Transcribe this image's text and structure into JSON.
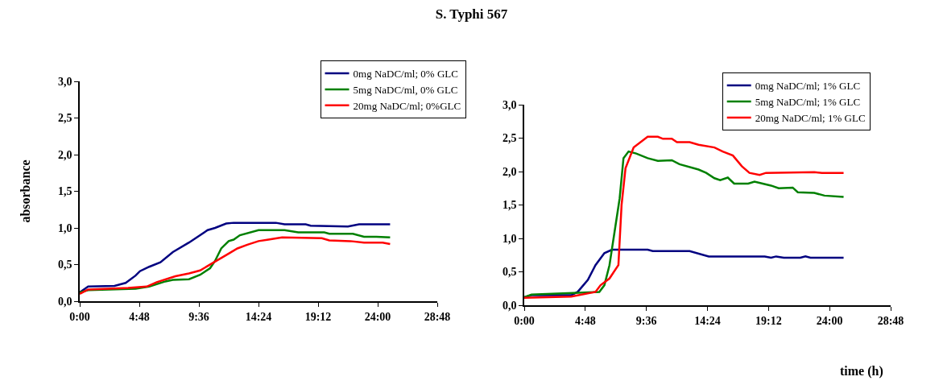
{
  "chart_data": [
    {
      "type": "line",
      "title": "S. Typhi 567",
      "ylabel": "absorbance",
      "legend": "top right",
      "grid": false,
      "marker": "none",
      "line_style": "solid",
      "xlim": [
        0,
        28.8
      ],
      "xticks": [
        {
          "value": 0,
          "label": "0:00"
        },
        {
          "value": 4.8,
          "label": "4:48"
        },
        {
          "value": 9.6,
          "label": "9:36"
        },
        {
          "value": 14.4,
          "label": "14:24"
        },
        {
          "value": 19.2,
          "label": "19:12"
        },
        {
          "value": 24,
          "label": "24:00"
        },
        {
          "value": 28.8,
          "label": "28:48"
        }
      ],
      "ylim": [
        0,
        3
      ],
      "yticks": [
        {
          "value": 0,
          "label": "0,0"
        },
        {
          "value": 0.5,
          "label": "0,5"
        },
        {
          "value": 1,
          "label": "1,0"
        },
        {
          "value": 1.5,
          "label": "1,5"
        },
        {
          "value": 2,
          "label": "2,0"
        },
        {
          "value": 2.5,
          "label": "2,5"
        },
        {
          "value": 3,
          "label": "3,0"
        }
      ],
      "series": [
        {
          "name": "0mg NaDC/ml; 0% GLC",
          "color": "#000080",
          "x": [
            0,
            0.68,
            2.8,
            3.7,
            4.5,
            4.85,
            5.6,
            6.5,
            7.5,
            8.8,
            10.3,
            10.9,
            11.8,
            12.4,
            15.8,
            16.5,
            18.2,
            18.6,
            21.6,
            22.5,
            25
          ],
          "values": [
            0.12,
            0.2,
            0.21,
            0.25,
            0.35,
            0.41,
            0.47,
            0.53,
            0.67,
            0.8,
            0.97,
            1.0,
            1.06,
            1.07,
            1.07,
            1.05,
            1.05,
            1.03,
            1.02,
            1.05,
            1.05
          ]
        },
        {
          "name": "5mg NaDC/ml, 0% GLC",
          "color": "#008000",
          "x": [
            0,
            0.68,
            4.5,
            5.6,
            6.9,
            7.5,
            8.8,
            9.7,
            10.5,
            10.9,
            11.4,
            12,
            12.4,
            12.9,
            14.4,
            16.5,
            17.6,
            19.7,
            20.1,
            22,
            22.9,
            23.9,
            25
          ],
          "values": [
            0.12,
            0.15,
            0.17,
            0.2,
            0.27,
            0.29,
            0.3,
            0.36,
            0.45,
            0.55,
            0.72,
            0.82,
            0.84,
            0.9,
            0.97,
            0.97,
            0.94,
            0.94,
            0.92,
            0.92,
            0.88,
            0.88,
            0.87
          ]
        },
        {
          "name": "20mg NaDC/ml; 0%GLC",
          "color": "#ff0000",
          "x": [
            0,
            0.68,
            3.9,
            5.4,
            6.2,
            7.7,
            8.8,
            9.7,
            10.7,
            12,
            12.7,
            13.5,
            14.4,
            15.2,
            16.3,
            19.5,
            20.1,
            21.8,
            22.9,
            24.4,
            25
          ],
          "values": [
            0.1,
            0.16,
            0.18,
            0.2,
            0.26,
            0.34,
            0.38,
            0.42,
            0.52,
            0.65,
            0.72,
            0.77,
            0.82,
            0.84,
            0.87,
            0.86,
            0.83,
            0.82,
            0.8,
            0.8,
            0.78
          ]
        }
      ]
    },
    {
      "type": "line",
      "xlabel": "time (h)",
      "legend": "top right",
      "grid": false,
      "marker": "none",
      "line_style": "solid",
      "xlim": [
        0,
        28.8
      ],
      "xticks": [
        {
          "value": 0,
          "label": "0:00"
        },
        {
          "value": 4.8,
          "label": "4:48"
        },
        {
          "value": 9.6,
          "label": "9:36"
        },
        {
          "value": 14.4,
          "label": "14:24"
        },
        {
          "value": 19.2,
          "label": "19:12"
        },
        {
          "value": 24,
          "label": "24:00"
        },
        {
          "value": 28.8,
          "label": "28:48"
        }
      ],
      "ylim": [
        0,
        3
      ],
      "yticks": [
        {
          "value": 0,
          "label": "0,0"
        },
        {
          "value": 0.5,
          "label": "0,5"
        },
        {
          "value": 1,
          "label": "1,0"
        },
        {
          "value": 1.5,
          "label": "1,5"
        },
        {
          "value": 2,
          "label": "2,0"
        },
        {
          "value": 2.5,
          "label": "2,5"
        },
        {
          "value": 3,
          "label": "3,0"
        }
      ],
      "series": [
        {
          "name": "0mg NaDC/ml; 1% GLC",
          "color": "#000080",
          "x": [
            0,
            0.57,
            3.7,
            4.2,
            5,
            5.6,
            6.3,
            6.9,
            9.7,
            10.1,
            13,
            14.5,
            18.9,
            19.4,
            19.8,
            20.4,
            21.7,
            22.1,
            22.5,
            25.1
          ],
          "values": [
            0.12,
            0.15,
            0.15,
            0.2,
            0.38,
            0.6,
            0.78,
            0.83,
            0.83,
            0.81,
            0.81,
            0.73,
            0.73,
            0.71,
            0.73,
            0.71,
            0.71,
            0.73,
            0.71,
            0.71
          ]
        },
        {
          "name": "5mg NaDC/ml; 1% GLC",
          "color": "#008000",
          "x": [
            0,
            0.57,
            5.9,
            6.3,
            6.7,
            7.1,
            7.5,
            7.8,
            8.2,
            8.8,
            9.7,
            10.5,
            11.6,
            12.2,
            13.7,
            14.3,
            14.95,
            15.4,
            16,
            16.5,
            17.6,
            18.1,
            19.4,
            20,
            21.1,
            21.5,
            22.8,
            23.6,
            25.1
          ],
          "values": [
            0.12,
            0.16,
            0.2,
            0.3,
            0.6,
            1.1,
            1.6,
            2.2,
            2.3,
            2.27,
            2.2,
            2.16,
            2.17,
            2.11,
            2.03,
            1.98,
            1.9,
            1.87,
            1.91,
            1.82,
            1.82,
            1.85,
            1.79,
            1.75,
            1.76,
            1.69,
            1.68,
            1.64,
            1.62
          ]
        },
        {
          "name": "20mg NaDC/ml; 1% GLC",
          "color": "#ff0000",
          "x": [
            0,
            3.7,
            5.6,
            6,
            6.7,
            7.4,
            7.65,
            7.96,
            8.6,
            9.7,
            10.5,
            10.9,
            11.6,
            12,
            13,
            13.7,
            14.95,
            15.6,
            16.4,
            17.1,
            17.7,
            18.5,
            19,
            22.8,
            23.4,
            25.1
          ],
          "values": [
            0.11,
            0.13,
            0.2,
            0.3,
            0.4,
            0.6,
            1.5,
            2.05,
            2.36,
            2.52,
            2.52,
            2.49,
            2.49,
            2.44,
            2.44,
            2.4,
            2.36,
            2.3,
            2.24,
            2.08,
            1.98,
            1.95,
            1.98,
            1.99,
            1.98,
            1.98
          ]
        }
      ]
    }
  ]
}
